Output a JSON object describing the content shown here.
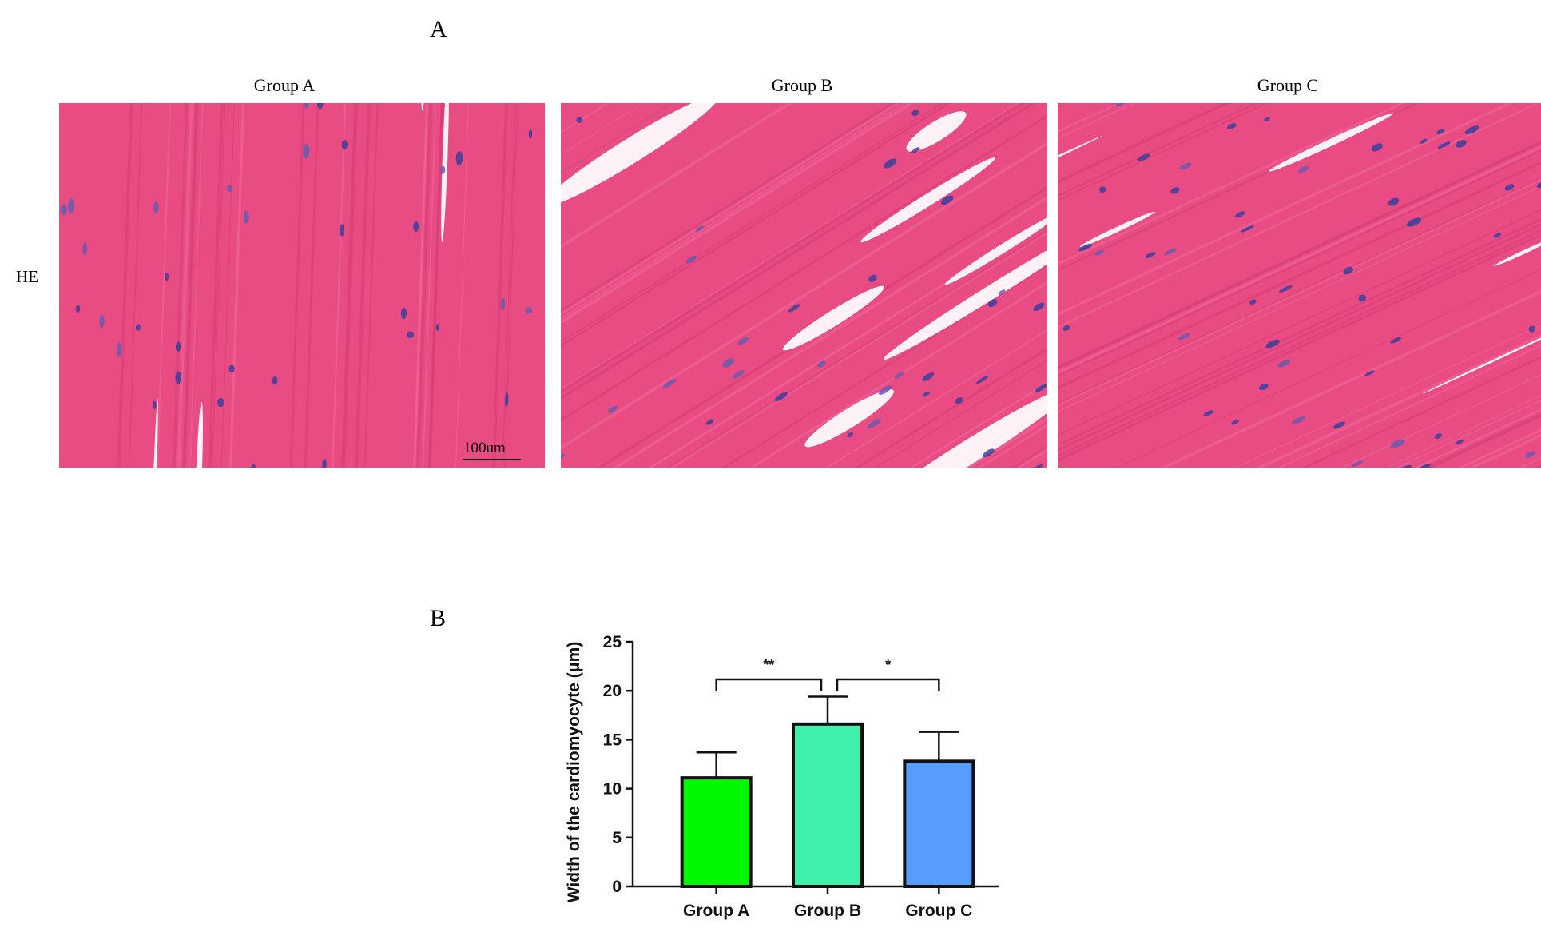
{
  "panel_a": {
    "letter": "A",
    "row_label": "HE",
    "panels": [
      {
        "title": "Group A",
        "tissue": "longitudinal-vertical"
      },
      {
        "title": "Group B",
        "tissue": "oblique-with-gaps"
      },
      {
        "title": "Group C",
        "tissue": "oblique-dense"
      }
    ],
    "scale_bar": "100um",
    "colors": {
      "cytoplasm": "#e84c83",
      "nucleus": "#3a3f9e",
      "gap": "#ffffff"
    }
  },
  "panel_b": {
    "letter": "B"
  },
  "chart_data": {
    "type": "bar",
    "categories": [
      "Group A",
      "Group B",
      "Group C"
    ],
    "values": [
      11.1,
      16.6,
      12.8
    ],
    "errors": [
      2.6,
      2.8,
      3.0
    ],
    "colors": [
      "#00f900",
      "#3ff0aa",
      "#569dfe"
    ],
    "ylabel": "Width of the cardiomyocyte (μm)",
    "ylim": [
      0,
      25
    ],
    "yticks": [
      0,
      5,
      10,
      15,
      20,
      25
    ],
    "significance": [
      {
        "from": "Group A",
        "to": "Group B",
        "label": "**"
      },
      {
        "from": "Group B",
        "to": "Group C",
        "label": "*"
      }
    ],
    "grid": false
  }
}
